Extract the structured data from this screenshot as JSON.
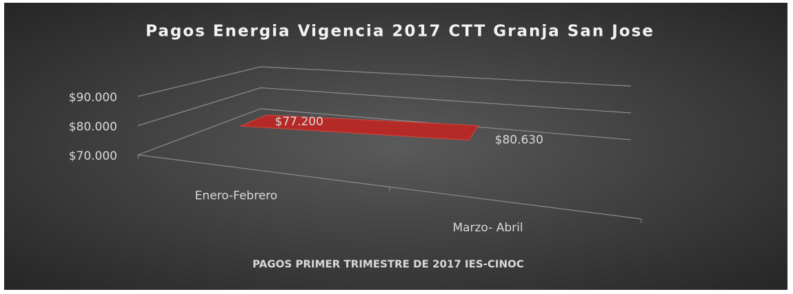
{
  "chart_data": {
    "type": "area3d",
    "title": "Pagos Energia Vigencia 2017 CTT Granja San Jose",
    "x_axis_label": "PAGOS PRIMER TRIMESTRE DE 2017 IES-CINOC",
    "categories": [
      "Enero-Febrero",
      "Marzo- Abril"
    ],
    "values": [
      77200,
      80630
    ],
    "value_labels": [
      "$77.200",
      "$80.630"
    ],
    "color": "#b52a26",
    "ylim": [
      70000,
      90000
    ],
    "yticks": [
      {
        "value": 70000,
        "label": "$70.000"
      },
      {
        "value": 80000,
        "label": "$80.000"
      },
      {
        "value": 90000,
        "label": "$90.000"
      }
    ],
    "grid": true
  }
}
